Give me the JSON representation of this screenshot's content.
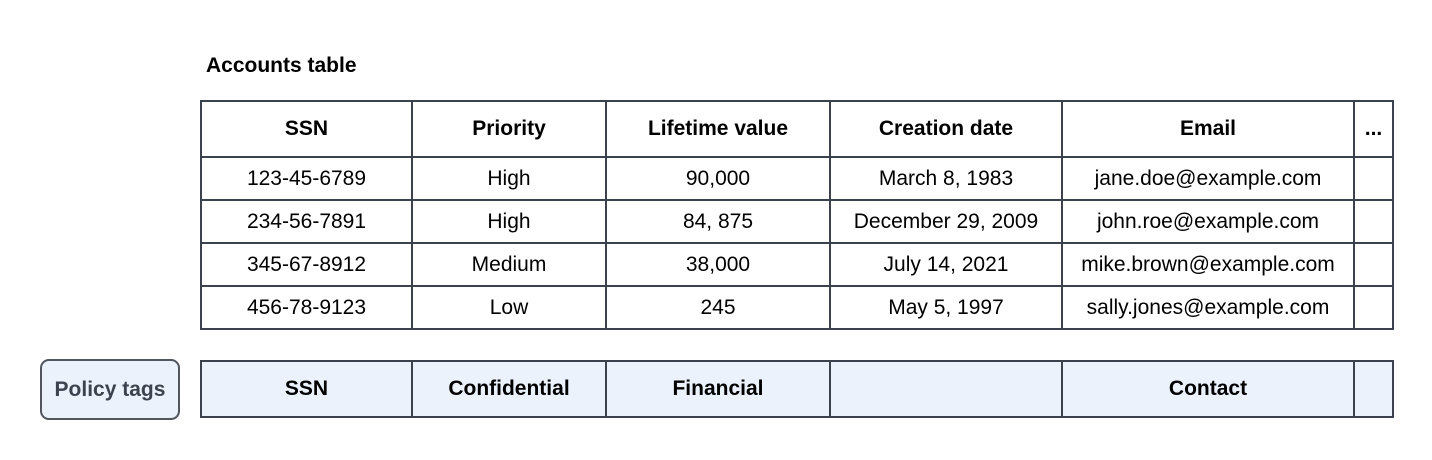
{
  "title": "Accounts table",
  "accounts": {
    "columns": [
      "SSN",
      "Priority",
      "Lifetime value",
      "Creation date",
      "Email",
      "..."
    ],
    "rows": [
      [
        "123-45-6789",
        "High",
        "90,000",
        "March 8, 1983",
        "jane.doe@example.com",
        ""
      ],
      [
        "234-56-7891",
        "High",
        "84, 875",
        "December 29, 2009",
        "john.roe@example.com",
        ""
      ],
      [
        "345-67-8912",
        "Medium",
        "38,000",
        "July 14, 2021",
        "mike.brown@example.com",
        ""
      ],
      [
        "456-78-9123",
        "Low",
        "245",
        "May 5, 1997",
        "sally.jones@example.com",
        ""
      ]
    ]
  },
  "policy": {
    "label": "Policy tags",
    "tags": [
      "SSN",
      "Confidential",
      "Financial",
      "",
      "Contact",
      ""
    ]
  },
  "colors": {
    "text": "#000000",
    "border": "#3b414d",
    "policy_bg": "#ebf2fc",
    "chip_border": "#50555e",
    "chip_text": "#3d434e"
  }
}
